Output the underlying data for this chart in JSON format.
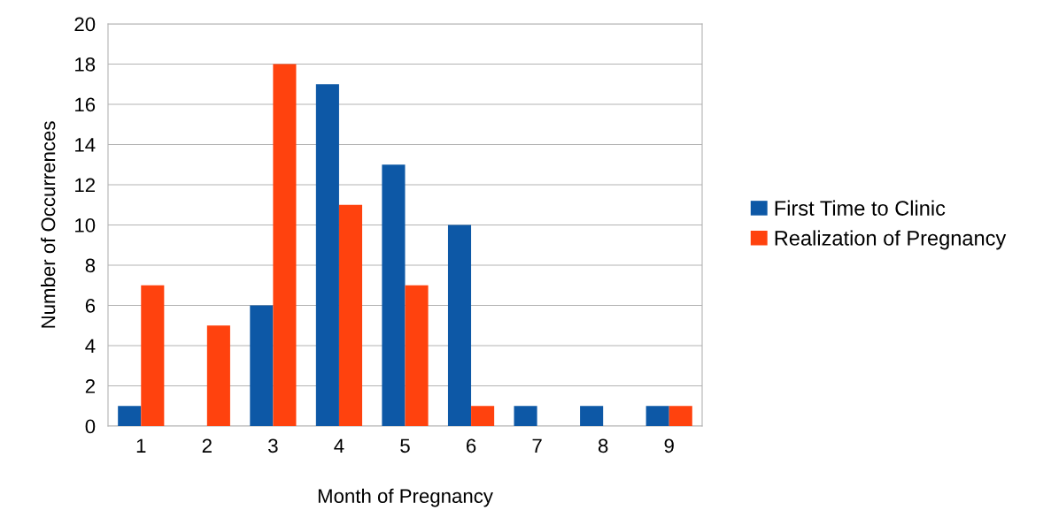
{
  "chart_data": {
    "type": "bar",
    "xlabel": "Month of Pregnancy",
    "ylabel": "Number of Occurrences",
    "categories": [
      "1",
      "2",
      "3",
      "4",
      "5",
      "6",
      "7",
      "8",
      "9"
    ],
    "series": [
      {
        "name": "First Time to Clinic",
        "color": "#0d58a6",
        "values": [
          1,
          0,
          6,
          17,
          13,
          10,
          1,
          1,
          1
        ]
      },
      {
        "name": "Realization of Pregnancy",
        "color": "#ff420e",
        "values": [
          7,
          5,
          18,
          11,
          7,
          1,
          0,
          0,
          1
        ]
      }
    ],
    "ylim": [
      0,
      20
    ],
    "yticks": [
      0,
      2,
      4,
      6,
      8,
      10,
      12,
      14,
      16,
      18,
      20
    ],
    "grid": "y",
    "legend": "right"
  }
}
